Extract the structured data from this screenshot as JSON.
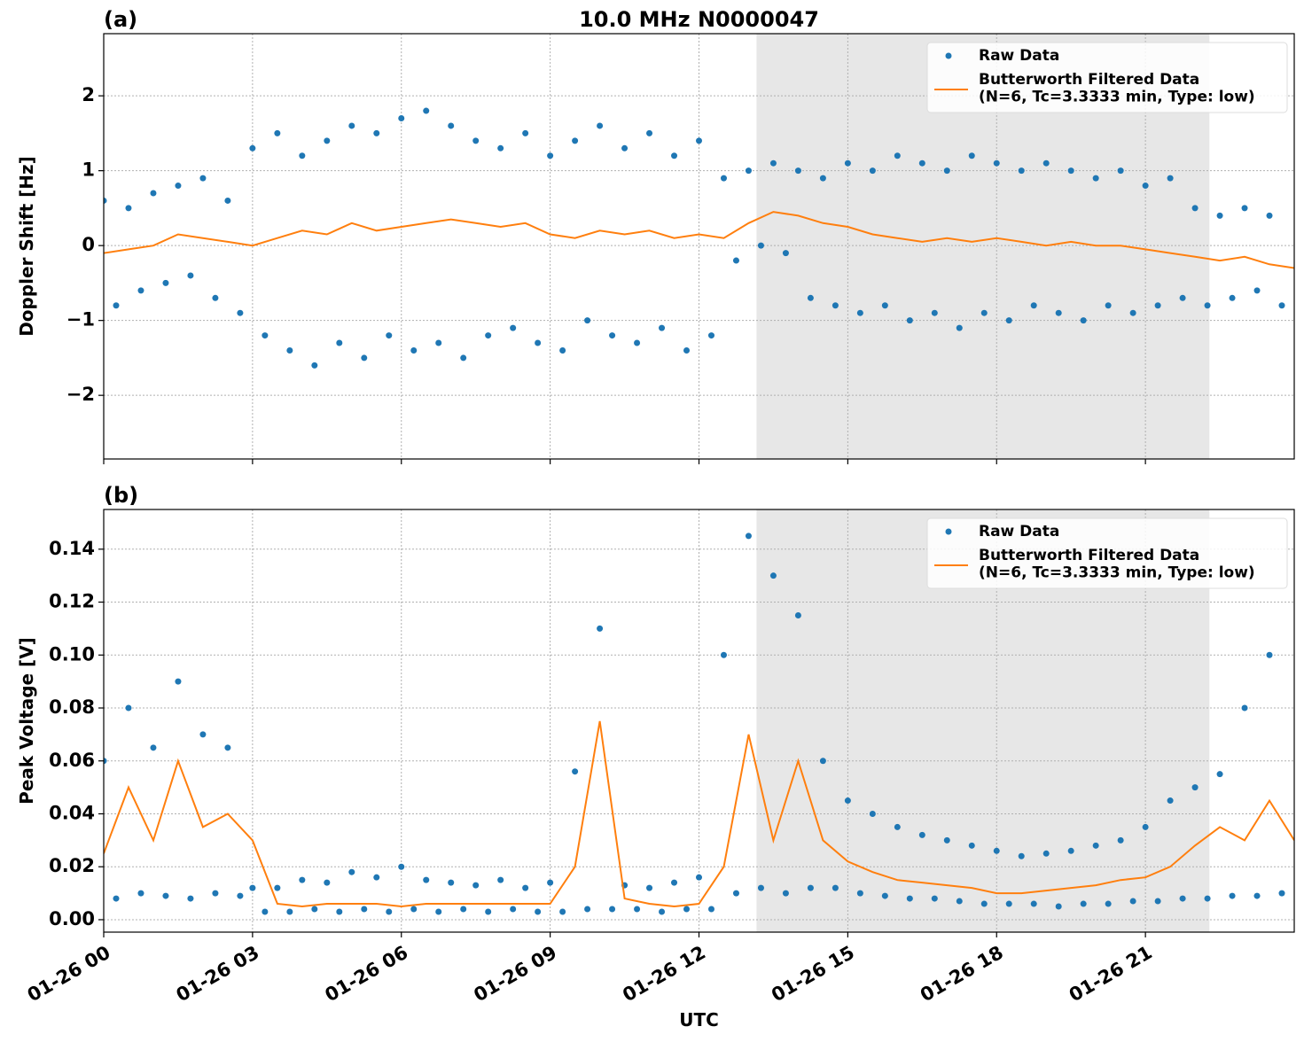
{
  "chart_data": [
    {
      "type": "scatter-line",
      "title": "10.0 MHz N0000047",
      "panel_label": "(a)",
      "ylabel": "Doppler Shift [Hz]",
      "xlim": [
        0,
        24
      ],
      "ylim": [
        -2.85,
        2.83
      ],
      "yticks": [
        {
          "value": -2,
          "label": "−2"
        },
        {
          "value": -1,
          "label": "−1"
        },
        0,
        1,
        2
      ],
      "grid": true,
      "legend": "upper right",
      "shade": [
        13.16,
        22.29
      ],
      "series": [
        {
          "name": "Raw Data",
          "kind": "points",
          "color": "#1f77b4",
          "x": [
            0,
            0.25,
            0.5,
            0.75,
            1,
            1.25,
            1.5,
            1.75,
            2,
            2.25,
            2.5,
            2.75,
            3,
            3.25,
            3.5,
            3.75,
            4,
            4.25,
            4.5,
            4.75,
            5,
            5.25,
            5.5,
            5.75,
            6,
            6.25,
            6.5,
            6.75,
            7,
            7.25,
            7.5,
            7.75,
            8,
            8.25,
            8.5,
            8.75,
            9,
            9.25,
            9.5,
            9.75,
            10,
            10.25,
            10.5,
            10.75,
            11,
            11.25,
            11.5,
            11.75,
            12,
            12.25,
            12.5,
            12.75,
            13,
            13.25,
            13.5,
            13.75,
            14,
            14.25,
            14.5,
            14.75,
            15,
            15.25,
            15.5,
            15.75,
            16,
            16.25,
            16.5,
            16.75,
            17,
            17.25,
            17.5,
            17.75,
            18,
            18.25,
            18.5,
            18.75,
            19,
            19.25,
            19.5,
            19.75,
            20,
            20.25,
            20.5,
            20.75,
            21,
            21.25,
            21.5,
            21.75,
            22,
            22.25,
            22.5,
            22.75,
            23,
            23.25,
            23.5,
            23.75
          ],
          "values": [
            0.6,
            -0.8,
            0.5,
            -0.6,
            0.7,
            -0.5,
            0.8,
            -0.4,
            0.9,
            -0.7,
            0.6,
            -0.9,
            1.3,
            -1.2,
            1.5,
            -1.4,
            1.2,
            -1.6,
            1.4,
            -1.3,
            1.6,
            -1.5,
            1.5,
            -1.2,
            1.7,
            -1.4,
            1.8,
            -1.3,
            1.6,
            -1.5,
            1.4,
            -1.2,
            1.3,
            -1.1,
            1.5,
            -1.3,
            1.2,
            -1.4,
            1.4,
            -1.0,
            1.6,
            -1.2,
            1.3,
            -1.3,
            1.5,
            -1.1,
            1.2,
            -1.4,
            1.4,
            -1.2,
            0.9,
            -0.2,
            1.0,
            0.0,
            1.1,
            -0.1,
            1.0,
            -0.7,
            0.9,
            -0.8,
            1.1,
            -0.9,
            1.0,
            -0.8,
            1.2,
            -1.0,
            1.1,
            -0.9,
            1.0,
            -1.1,
            1.2,
            -0.9,
            1.1,
            -1.0,
            1.0,
            -0.8,
            1.1,
            -0.9,
            1.0,
            -1.0,
            0.9,
            -0.8,
            1.0,
            -0.9,
            0.8,
            -0.8,
            0.9,
            -0.7,
            0.5,
            -0.8,
            0.4,
            -0.7,
            0.5,
            -0.6,
            0.4,
            -0.8
          ]
        },
        {
          "name": "Butterworth Filtered Data\n(N=6, Tc=3.3333 min, Type: low)",
          "kind": "line",
          "color": "#ff7f0e",
          "x": [
            0,
            0.5,
            1,
            1.5,
            2,
            2.5,
            3,
            3.5,
            4,
            4.5,
            5,
            5.5,
            6,
            6.5,
            7,
            7.5,
            8,
            8.5,
            9,
            9.5,
            10,
            10.5,
            11,
            11.5,
            12,
            12.5,
            13,
            13.5,
            14,
            14.5,
            15,
            15.5,
            16,
            16.5,
            17,
            17.5,
            18,
            18.5,
            19,
            19.5,
            20,
            20.5,
            21,
            21.5,
            22,
            22.5,
            23,
            23.5,
            24
          ],
          "values": [
            -0.1,
            -0.05,
            0.0,
            0.15,
            0.1,
            0.05,
            0.0,
            0.1,
            0.2,
            0.15,
            0.3,
            0.2,
            0.25,
            0.3,
            0.35,
            0.3,
            0.25,
            0.3,
            0.15,
            0.1,
            0.2,
            0.15,
            0.2,
            0.1,
            0.15,
            0.1,
            0.3,
            0.45,
            0.4,
            0.3,
            0.25,
            0.15,
            0.1,
            0.05,
            0.1,
            0.05,
            0.1,
            0.05,
            0.0,
            0.05,
            0.0,
            0.0,
            -0.05,
            -0.1,
            -0.15,
            -0.2,
            -0.15,
            -0.25,
            -0.3
          ]
        }
      ]
    },
    {
      "type": "scatter-line",
      "panel_label": "(b)",
      "ylabel": "Peak Voltage [V]",
      "xlabel": "UTC",
      "xlim": [
        0,
        24
      ],
      "ylim": [
        -0.0047,
        0.155
      ],
      "xticks": [
        {
          "value": 0,
          "label": "01-26 00"
        },
        {
          "value": 3,
          "label": "01-26 03"
        },
        {
          "value": 6,
          "label": "01-26 06"
        },
        {
          "value": 9,
          "label": "01-26 09"
        },
        {
          "value": 12,
          "label": "01-26 12"
        },
        {
          "value": 15,
          "label": "01-26 15"
        },
        {
          "value": 18,
          "label": "01-26 18"
        },
        {
          "value": 21,
          "label": "01-26 21"
        }
      ],
      "yticks": [
        {
          "value": 0,
          "label": "0.00"
        },
        {
          "value": 0.02,
          "label": "0.02"
        },
        {
          "value": 0.04,
          "label": "0.04"
        },
        {
          "value": 0.06,
          "label": "0.06"
        },
        {
          "value": 0.08,
          "label": "0.08"
        },
        {
          "value": 0.1,
          "label": "0.10"
        },
        {
          "value": 0.12,
          "label": "0.12"
        },
        {
          "value": 0.14,
          "label": "0.14"
        }
      ],
      "grid": true,
      "legend": "upper right",
      "shade": [
        13.16,
        22.29
      ],
      "series": [
        {
          "name": "Raw Data",
          "kind": "points",
          "color": "#1f77b4",
          "x": [
            0,
            0.25,
            0.5,
            0.75,
            1,
            1.25,
            1.5,
            1.75,
            2,
            2.25,
            2.5,
            2.75,
            3,
            3.25,
            3.5,
            3.75,
            4,
            4.25,
            4.5,
            4.75,
            5,
            5.25,
            5.5,
            5.75,
            6,
            6.25,
            6.5,
            6.75,
            7,
            7.25,
            7.5,
            7.75,
            8,
            8.25,
            8.5,
            8.75,
            9,
            9.25,
            9.5,
            9.75,
            10,
            10.25,
            10.5,
            10.75,
            11,
            11.25,
            11.5,
            11.75,
            12,
            12.25,
            12.5,
            12.75,
            13,
            13.25,
            13.5,
            13.75,
            14,
            14.25,
            14.5,
            14.75,
            15,
            15.25,
            15.5,
            15.75,
            16,
            16.25,
            16.5,
            16.75,
            17,
            17.25,
            17.5,
            17.75,
            18,
            18.25,
            18.5,
            18.75,
            19,
            19.25,
            19.5,
            19.75,
            20,
            20.25,
            20.5,
            20.75,
            21,
            21.25,
            21.5,
            21.75,
            22,
            22.25,
            22.5,
            22.75,
            23,
            23.25,
            23.5,
            23.75
          ],
          "values": [
            0.06,
            0.008,
            0.08,
            0.01,
            0.065,
            0.009,
            0.09,
            0.008,
            0.07,
            0.01,
            0.065,
            0.009,
            0.012,
            0.003,
            0.012,
            0.003,
            0.015,
            0.004,
            0.014,
            0.003,
            0.018,
            0.004,
            0.016,
            0.003,
            0.02,
            0.004,
            0.015,
            0.003,
            0.014,
            0.004,
            0.013,
            0.003,
            0.015,
            0.004,
            0.012,
            0.003,
            0.014,
            0.003,
            0.056,
            0.004,
            0.11,
            0.004,
            0.013,
            0.004,
            0.012,
            0.003,
            0.014,
            0.004,
            0.016,
            0.004,
            0.1,
            0.01,
            0.145,
            0.012,
            0.13,
            0.01,
            0.115,
            0.012,
            0.06,
            0.012,
            0.045,
            0.01,
            0.04,
            0.009,
            0.035,
            0.008,
            0.032,
            0.008,
            0.03,
            0.007,
            0.028,
            0.006,
            0.026,
            0.006,
            0.024,
            0.006,
            0.025,
            0.005,
            0.026,
            0.006,
            0.028,
            0.006,
            0.03,
            0.007,
            0.035,
            0.007,
            0.045,
            0.008,
            0.05,
            0.008,
            0.055,
            0.009,
            0.08,
            0.009,
            0.1,
            0.01
          ]
        },
        {
          "name": "Butterworth Filtered Data\n(N=6, Tc=3.3333 min, Type: low)",
          "kind": "line",
          "color": "#ff7f0e",
          "x": [
            0,
            0.5,
            1,
            1.5,
            2,
            2.5,
            3,
            3.5,
            4,
            4.5,
            5,
            5.5,
            6,
            6.5,
            7,
            7.5,
            8,
            8.5,
            9,
            9.5,
            10,
            10.5,
            11,
            11.5,
            12,
            12.5,
            13,
            13.5,
            14,
            14.5,
            15,
            15.5,
            16,
            16.5,
            17,
            17.5,
            18,
            18.5,
            19,
            19.5,
            20,
            20.5,
            21,
            21.5,
            22,
            22.5,
            23,
            23.5,
            24
          ],
          "values": [
            0.025,
            0.05,
            0.03,
            0.06,
            0.035,
            0.04,
            0.03,
            0.006,
            0.005,
            0.006,
            0.006,
            0.006,
            0.005,
            0.006,
            0.006,
            0.006,
            0.006,
            0.006,
            0.006,
            0.02,
            0.075,
            0.008,
            0.006,
            0.005,
            0.006,
            0.02,
            0.07,
            0.03,
            0.06,
            0.03,
            0.022,
            0.018,
            0.015,
            0.014,
            0.013,
            0.012,
            0.01,
            0.01,
            0.011,
            0.012,
            0.013,
            0.015,
            0.016,
            0.02,
            0.028,
            0.035,
            0.03,
            0.045,
            0.03
          ]
        }
      ]
    }
  ]
}
